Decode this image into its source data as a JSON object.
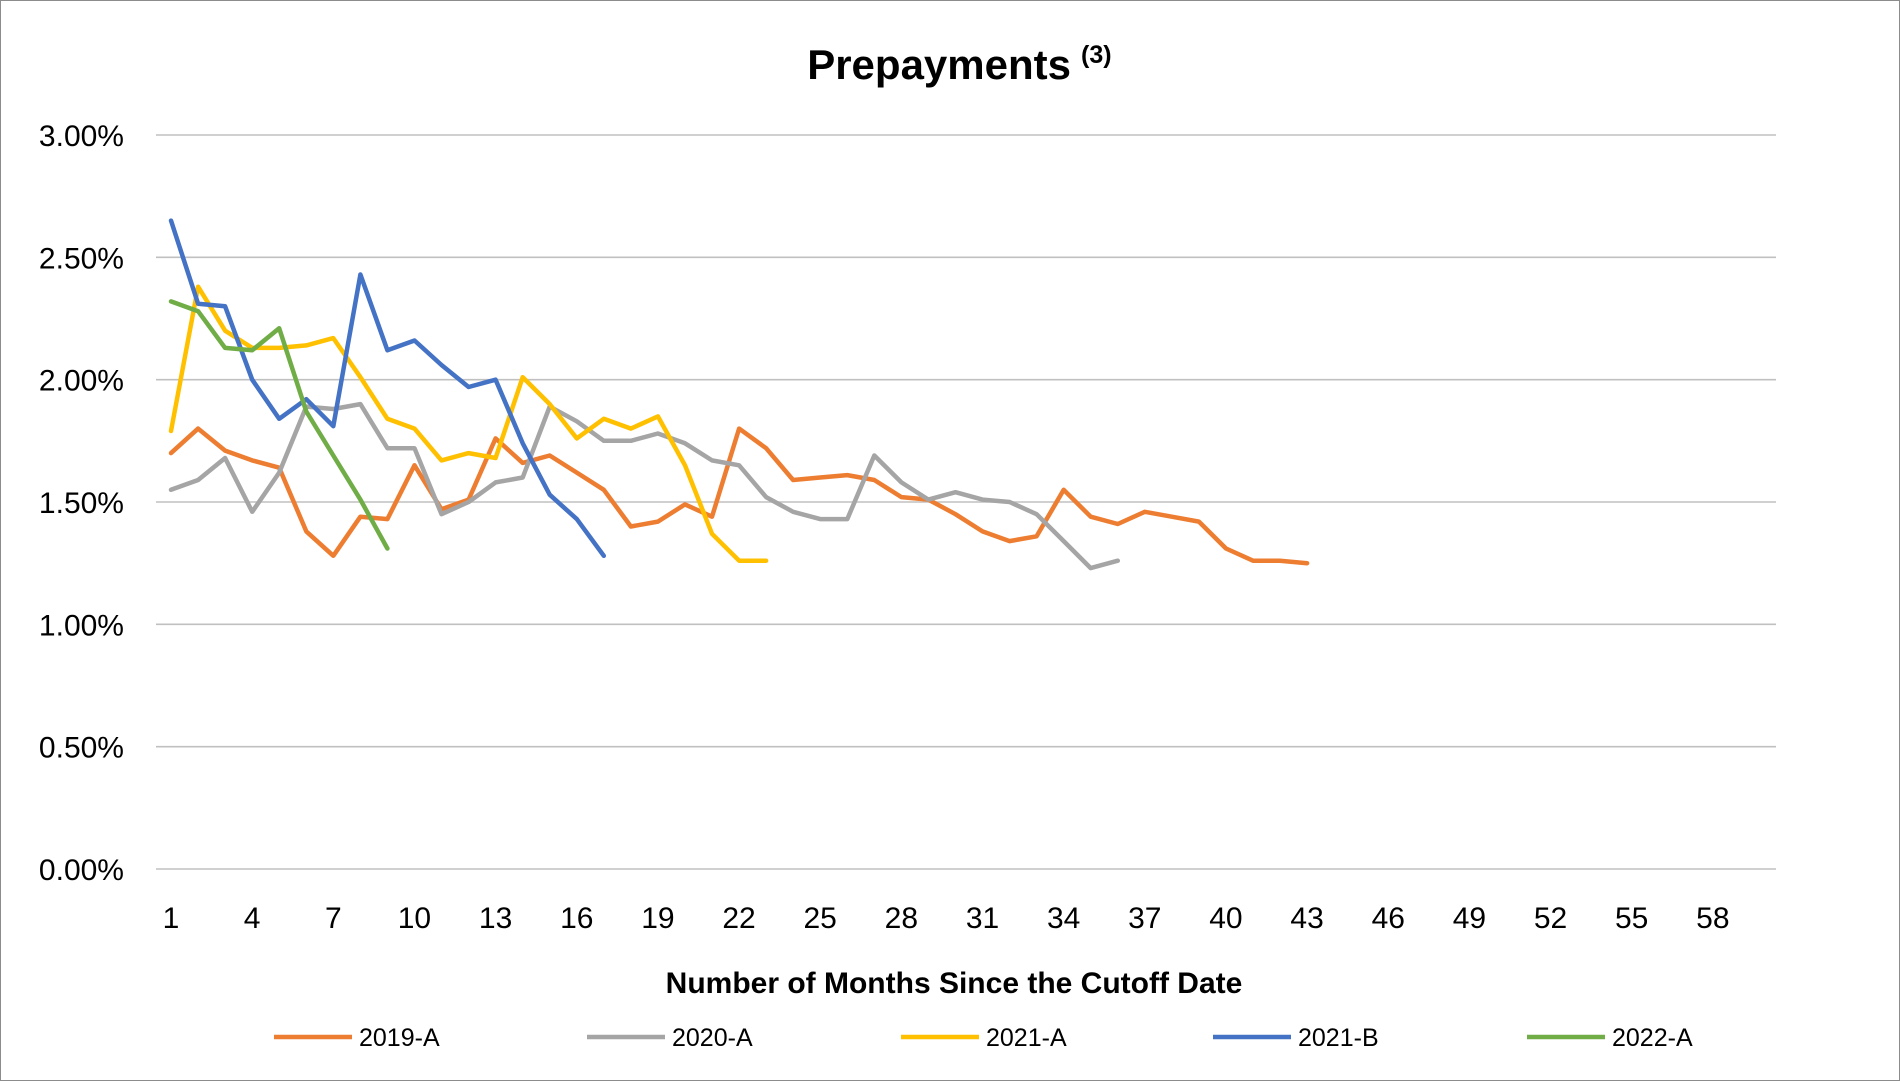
{
  "chart_data": {
    "type": "line",
    "title": "Prepayments",
    "title_superscript": "(3)",
    "xlabel": "Number of Months Since the Cutoff Date",
    "ylabel": "",
    "ylim": [
      0,
      3
    ],
    "xlim": [
      1,
      60
    ],
    "y_ticks": [
      "0.00%",
      "0.50%",
      "1.00%",
      "1.50%",
      "2.00%",
      "2.50%",
      "3.00%"
    ],
    "y_tick_values": [
      0,
      0.5,
      1,
      1.5,
      2,
      2.5,
      3
    ],
    "x_ticks": [
      "1",
      "4",
      "7",
      "10",
      "13",
      "16",
      "19",
      "22",
      "25",
      "28",
      "31",
      "34",
      "37",
      "40",
      "43",
      "46",
      "49",
      "52",
      "55",
      "58"
    ],
    "x_tick_values": [
      1,
      4,
      7,
      10,
      13,
      16,
      19,
      22,
      25,
      28,
      31,
      34,
      37,
      40,
      43,
      46,
      49,
      52,
      55,
      58
    ],
    "grid": true,
    "legend_position": "bottom",
    "series": [
      {
        "name": "2019-A",
        "color": "#ED7D31",
        "values": [
          1.7,
          1.8,
          1.71,
          1.67,
          1.64,
          1.38,
          1.28,
          1.44,
          1.43,
          1.65,
          1.47,
          1.51,
          1.76,
          1.66,
          1.69,
          1.62,
          1.55,
          1.4,
          1.42,
          1.49,
          1.44,
          1.8,
          1.72,
          1.59,
          1.6,
          1.61,
          1.59,
          1.52,
          1.51,
          1.45,
          1.38,
          1.34,
          1.36,
          1.55,
          1.44,
          1.41,
          1.46,
          1.44,
          1.42,
          1.31,
          1.26,
          1.26,
          1.25
        ]
      },
      {
        "name": "2020-A",
        "color": "#A5A5A5",
        "values": [
          1.55,
          1.59,
          1.68,
          1.46,
          1.62,
          1.89,
          1.88,
          1.9,
          1.72,
          1.72,
          1.45,
          1.5,
          1.58,
          1.6,
          1.89,
          1.83,
          1.75,
          1.75,
          1.78,
          1.74,
          1.67,
          1.65,
          1.52,
          1.46,
          1.43,
          1.43,
          1.69,
          1.58,
          1.51,
          1.54,
          1.51,
          1.5,
          1.45,
          1.34,
          1.23,
          1.26
        ]
      },
      {
        "name": "2021-A",
        "color": "#FFC000",
        "values": [
          1.79,
          2.38,
          2.2,
          2.13,
          2.13,
          2.14,
          2.17,
          2.01,
          1.84,
          1.8,
          1.67,
          1.7,
          1.68,
          2.01,
          1.9,
          1.76,
          1.84,
          1.8,
          1.85,
          1.65,
          1.37,
          1.26,
          1.26
        ]
      },
      {
        "name": "2021-B",
        "color": "#4472C4",
        "values": [
          2.65,
          2.31,
          2.3,
          2.0,
          1.84,
          1.92,
          1.81,
          2.43,
          2.12,
          2.16,
          2.06,
          1.97,
          2.0,
          1.74,
          1.53,
          1.43,
          1.28
        ]
      },
      {
        "name": "2022-A",
        "color": "#70AD47",
        "values": [
          2.32,
          2.28,
          2.13,
          2.12,
          2.21,
          1.87,
          1.69,
          1.51,
          1.31
        ]
      }
    ]
  }
}
